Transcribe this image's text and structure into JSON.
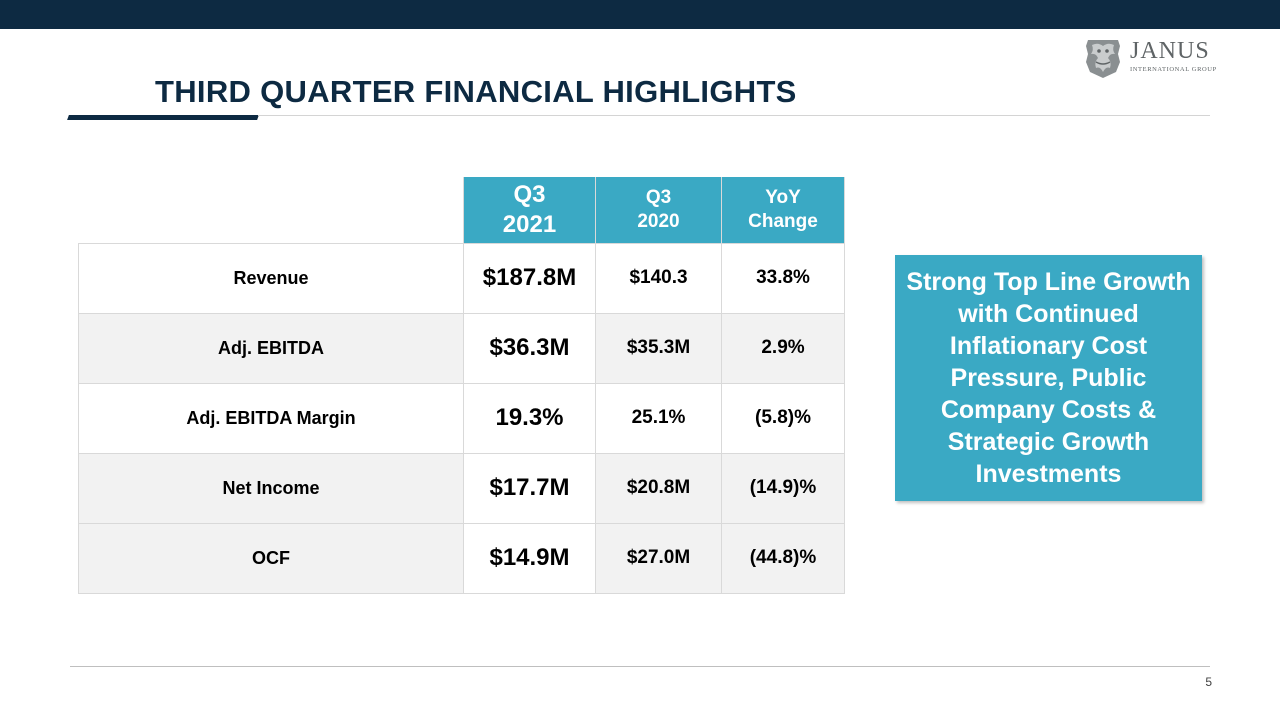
{
  "slide": {
    "title": "THIRD QUARTER FINANCIAL HIGHLIGHTS",
    "page_number": "5",
    "colors": {
      "navy": "#0d2a42",
      "teal": "#3aa9c4",
      "row_gray": "#f2f2f2"
    }
  },
  "logo": {
    "name": "JANUS",
    "subtitle": "INTERNATIONAL GROUP",
    "icon": "lion-crest-icon"
  },
  "table": {
    "headers": [
      {
        "line1": "Q3",
        "line2": "2021"
      },
      {
        "line1": "Q3",
        "line2": "2020"
      },
      {
        "line1": "YoY",
        "line2": "Change"
      }
    ],
    "rows": [
      {
        "label": "Revenue",
        "q3_2021": "$187.8M",
        "q3_2020": "$140.3",
        "yoy": "33.8%"
      },
      {
        "label": "Adj. EBITDA",
        "q3_2021": "$36.3M",
        "q3_2020": "$35.3M",
        "yoy": "2.9%"
      },
      {
        "label": "Adj. EBITDA Margin",
        "q3_2021": "19.3%",
        "q3_2020": "25.1%",
        "yoy": "(5.8)%"
      },
      {
        "label": "Net Income",
        "q3_2021": "$17.7M",
        "q3_2020": "$20.8M",
        "yoy": "(14.9)%"
      },
      {
        "label": "OCF",
        "q3_2021": "$14.9M",
        "q3_2020": "$27.0M",
        "yoy": "(44.8)%"
      }
    ]
  },
  "callout": {
    "text": "Strong Top Line Growth with Continued Inflationary Cost Pressure, Public Company Costs & Strategic Growth Investments"
  }
}
